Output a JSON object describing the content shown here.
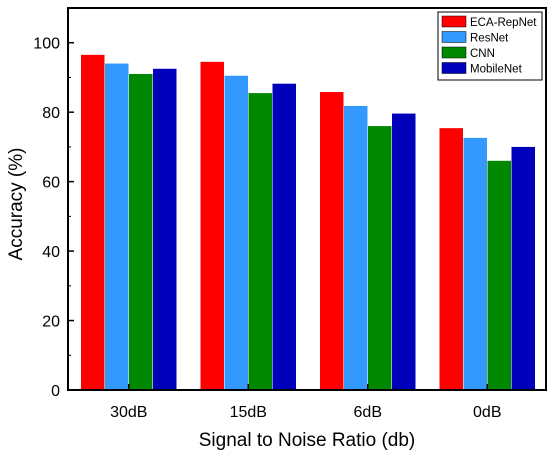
{
  "chart_data": {
    "type": "bar",
    "title": "",
    "xlabel": "Signal to Noise Ratio (db)",
    "ylabel": "Accuracy (%)",
    "ylim": [
      0,
      110
    ],
    "yticks": [
      0,
      20,
      40,
      60,
      80,
      100
    ],
    "categories": [
      "30dB",
      "15dB",
      "6dB",
      "0dB"
    ],
    "legend_position": "top-right",
    "grid": false,
    "series": [
      {
        "name": "ECA-RepNet",
        "color": "#ff0000",
        "values": [
          96.5,
          94.5,
          85.8,
          75.4
        ]
      },
      {
        "name": "ResNet",
        "color": "#3399ff",
        "values": [
          94.0,
          90.5,
          81.8,
          72.6
        ]
      },
      {
        "name": "CNN",
        "color": "#008800",
        "values": [
          91.0,
          85.5,
          76.0,
          66.0
        ]
      },
      {
        "name": "MobileNet",
        "color": "#0000bb",
        "values": [
          92.5,
          88.2,
          79.6,
          70.0
        ]
      }
    ]
  }
}
